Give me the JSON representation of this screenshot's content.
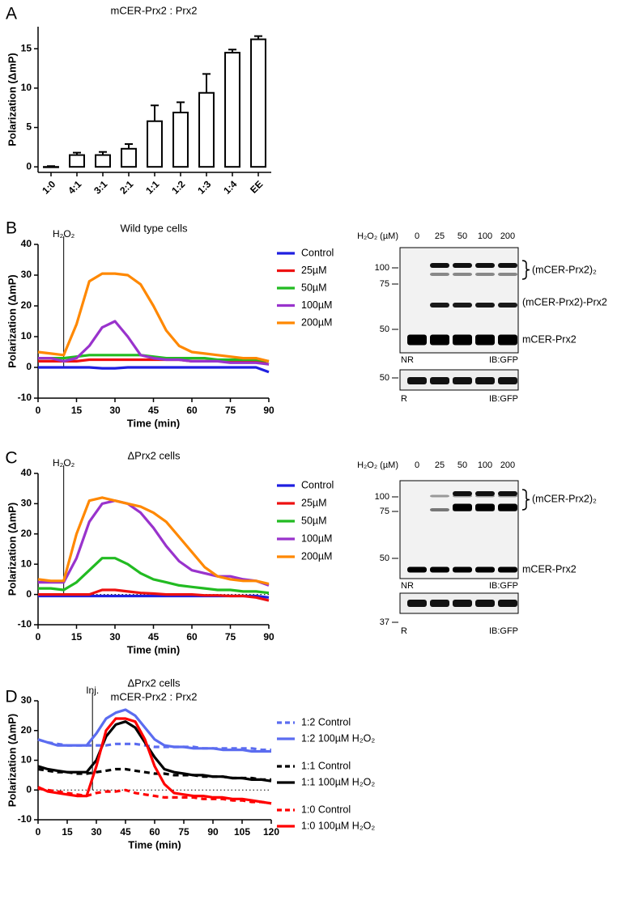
{
  "chart_data": [
    {
      "type": "bar",
      "panel": "A",
      "title": "mCER-Prx2 : Prx2",
      "y_label": "Polarization (ΔmP)",
      "categories": [
        "1:0",
        "4:1",
        "3:1",
        "2:1",
        "1:1",
        "1:2",
        "1:3",
        "1:4",
        "EE"
      ],
      "values": [
        0,
        1.5,
        1.5,
        2.3,
        5.8,
        6.9,
        9.4,
        14.5,
        16.2
      ],
      "errors": [
        0.1,
        0.3,
        0.4,
        0.6,
        2.0,
        1.3,
        2.4,
        0.4,
        0.4
      ],
      "color": "#ffffff",
      "ylim": [
        -0.7,
        17.8
      ],
      "yticks": [
        0,
        5,
        10,
        15
      ]
    },
    {
      "type": "line",
      "panel": "B",
      "title": "Wild type cells",
      "x_label": "Time (min)",
      "y_label": "Polarization (ΔmP)",
      "annotation": {
        "text": "H₂O₂",
        "x": 10
      },
      "x": [
        0,
        5,
        10,
        15,
        20,
        25,
        30,
        35,
        40,
        45,
        50,
        55,
        60,
        65,
        70,
        75,
        80,
        85,
        90
      ],
      "series": [
        {
          "name": "Control",
          "color": "#1f1fe0",
          "values": [
            0,
            0,
            0,
            0,
            0,
            -0.3,
            -0.3,
            0,
            0,
            0,
            0,
            0,
            0,
            0,
            0,
            0,
            0,
            0,
            -1.5
          ]
        },
        {
          "name": "25µM",
          "color": "#ee1111",
          "values": [
            2,
            2,
            2,
            2,
            2.5,
            2.5,
            2.5,
            2.5,
            2.5,
            2.5,
            2.5,
            2.5,
            2,
            2,
            2,
            2,
            2,
            2,
            1
          ]
        },
        {
          "name": "50µM",
          "color": "#22bb22",
          "values": [
            3,
            3,
            3,
            3.5,
            4,
            4,
            4,
            4,
            4,
            3.5,
            3,
            3,
            3,
            3,
            2.5,
            2.5,
            2.5,
            2.5,
            2
          ]
        },
        {
          "name": "100µM",
          "color": "#9933cc",
          "values": [
            3,
            3,
            2,
            3,
            7,
            13,
            15,
            10,
            4,
            3,
            2.5,
            2.5,
            2,
            2,
            2,
            1.5,
            1.5,
            1.5,
            1
          ]
        },
        {
          "name": "200µM",
          "color": "#ff8800",
          "values": [
            5,
            4.5,
            4,
            14,
            28,
            30.5,
            30.5,
            30,
            27,
            20,
            12,
            7,
            5,
            4.5,
            4,
            3.5,
            3,
            3,
            2
          ]
        }
      ],
      "xlim": [
        0,
        90
      ],
      "xticks": [
        0,
        15,
        30,
        45,
        60,
        75,
        90
      ],
      "ylim": [
        -10,
        40
      ],
      "yticks": [
        -10,
        0,
        10,
        20,
        30,
        40
      ],
      "zero_line": false
    },
    {
      "type": "line",
      "panel": "C",
      "title": "ΔPrx2 cells",
      "x_label": "Time (min)",
      "y_label": "Polarization (ΔmP)",
      "annotation": {
        "text": "H₂O₂",
        "x": 10
      },
      "x": [
        0,
        5,
        10,
        15,
        20,
        25,
        30,
        35,
        40,
        45,
        50,
        55,
        60,
        65,
        70,
        75,
        80,
        85,
        90
      ],
      "series": [
        {
          "name": "Control",
          "color": "#1f1fe0",
          "values": [
            -0.5,
            -0.5,
            -0.5,
            -0.5,
            -0.5,
            -0.5,
            -0.5,
            -0.5,
            -0.5,
            -0.5,
            -0.5,
            -0.5,
            -0.5,
            -0.5,
            -0.5,
            -0.5,
            -0.5,
            -0.5,
            -1
          ]
        },
        {
          "name": "25µM",
          "color": "#ee1111",
          "values": [
            0,
            0,
            0,
            0,
            0,
            1.5,
            1.5,
            1,
            0.5,
            0.3,
            0,
            0,
            0,
            -0.3,
            -0.3,
            -0.5,
            -0.5,
            -1,
            -2
          ]
        },
        {
          "name": "50µM",
          "color": "#22bb22",
          "values": [
            2,
            2,
            1.5,
            4,
            8,
            12,
            12,
            10,
            7,
            5,
            4,
            3,
            2.5,
            2,
            1.5,
            1.5,
            1,
            1,
            0.5
          ]
        },
        {
          "name": "100µM",
          "color": "#9933cc",
          "values": [
            4,
            4,
            4,
            12,
            24,
            30,
            31,
            30,
            27,
            22,
            16,
            11,
            8,
            7,
            6,
            6,
            5,
            4.5,
            3
          ]
        },
        {
          "name": "200µM",
          "color": "#ff8800",
          "values": [
            5,
            4.5,
            4.5,
            20,
            31,
            32,
            31,
            30,
            29,
            27,
            24,
            19,
            14,
            9,
            6,
            5,
            4.5,
            4.5,
            3.5
          ]
        }
      ],
      "xlim": [
        0,
        90
      ],
      "xticks": [
        0,
        15,
        30,
        45,
        60,
        75,
        90
      ],
      "ylim": [
        -10,
        40
      ],
      "yticks": [
        -10,
        0,
        10,
        20,
        30,
        40
      ],
      "zero_line": true
    },
    {
      "type": "line",
      "panel": "D",
      "title": "ΔPrx2 cells",
      "subtitle": "mCER-Prx2 : Prx2",
      "x_label": "Time (min)",
      "y_label": "Polarization (ΔmP)",
      "annotation": {
        "text": "Inj.",
        "x": 28
      },
      "x": [
        0,
        5,
        10,
        15,
        20,
        25,
        30,
        35,
        40,
        45,
        50,
        55,
        60,
        65,
        70,
        75,
        80,
        85,
        90,
        95,
        100,
        105,
        110,
        115,
        120
      ],
      "series": [
        {
          "name": "1:2 Control",
          "color": "#5b6cf0",
          "dash": true,
          "values": [
            17,
            16,
            15.5,
            15,
            15,
            15,
            15,
            15,
            15.5,
            15.5,
            15.5,
            15,
            14.5,
            14.5,
            14.5,
            14.5,
            14.5,
            14,
            14,
            14,
            14,
            14,
            14,
            13.5,
            13.5
          ]
        },
        {
          "name": "1:2 100µM H₂O₂",
          "color": "#5b6cf0",
          "dash": false,
          "values": [
            17,
            16,
            15,
            15,
            15,
            15,
            19,
            24,
            26,
            27,
            25,
            21,
            17,
            15,
            14.5,
            14.5,
            14,
            14,
            14,
            13.5,
            13.5,
            13.5,
            13,
            13,
            13
          ]
        },
        {
          "name": "1:1 Control",
          "color": "#000000",
          "dash": true,
          "values": [
            7,
            6.5,
            6,
            6,
            5.5,
            5.5,
            6,
            6.5,
            7,
            7,
            6.5,
            6,
            5.5,
            5.5,
            5,
            5,
            5,
            4.5,
            4.5,
            4.5,
            4,
            4,
            4,
            3.5,
            3.5
          ]
        },
        {
          "name": "1:1 100µM H₂O₂",
          "color": "#000000",
          "dash": false,
          "values": [
            8,
            7,
            6.5,
            6,
            6,
            6,
            10,
            18,
            22,
            23,
            21,
            16,
            11,
            7,
            6,
            5.5,
            5,
            5,
            4.5,
            4.5,
            4,
            4,
            3.5,
            3.5,
            3
          ]
        },
        {
          "name": "1:0 Control",
          "color": "#ff0000",
          "dash": true,
          "values": [
            0.5,
            0,
            -0.5,
            -1,
            -1.5,
            -2,
            -1,
            -0.5,
            -0.5,
            0,
            -1,
            -1.5,
            -2,
            -2.5,
            -2.5,
            -2.5,
            -2.5,
            -3,
            -3,
            -3,
            -3.5,
            -3.5,
            -4,
            -4,
            -4.5
          ]
        },
        {
          "name": "1:0 100µM H₂O₂",
          "color": "#ff0000",
          "dash": false,
          "values": [
            1,
            -0.5,
            -1,
            -1.5,
            -2,
            -2,
            8,
            20,
            24,
            24,
            23,
            17,
            8,
            2,
            -1,
            -1.5,
            -2,
            -2,
            -2.5,
            -2.5,
            -3,
            -3,
            -3.5,
            -4,
            -4.5
          ]
        }
      ],
      "xlim": [
        0,
        120
      ],
      "xticks": [
        0,
        15,
        30,
        45,
        60,
        75,
        90,
        105,
        120
      ],
      "ylim": [
        -10,
        30
      ],
      "yticks": [
        -10,
        0,
        10,
        20,
        30
      ],
      "zero_line": true
    }
  ],
  "blots": [
    {
      "header": "H₂O₂ (µM)",
      "lanes": [
        "0",
        "25",
        "50",
        "100",
        "200"
      ],
      "markers_top": [
        "100",
        "75",
        "50"
      ],
      "markers_bottom": [
        "50"
      ],
      "labels": [
        "(mCER-Prx2)₂",
        "(mCER-Prx2)-Prx2",
        "mCER-Prx2"
      ],
      "top_condition": "NR",
      "top_antibody": "IB:GFP",
      "bottom_condition": "R",
      "bottom_antibody": "IB:GFP"
    },
    {
      "header": "H₂O₂ (µM)",
      "lanes": [
        "0",
        "25",
        "50",
        "100",
        "200"
      ],
      "markers_top": [
        "100",
        "75",
        "50"
      ],
      "markers_bottom": [
        "37"
      ],
      "labels": [
        "(mCER-Prx2)₂",
        "mCER-Prx2"
      ],
      "top_condition": "NR",
      "top_antibody": "IB:GFP",
      "bottom_condition": "R",
      "bottom_antibody": "IB:GFP"
    }
  ]
}
